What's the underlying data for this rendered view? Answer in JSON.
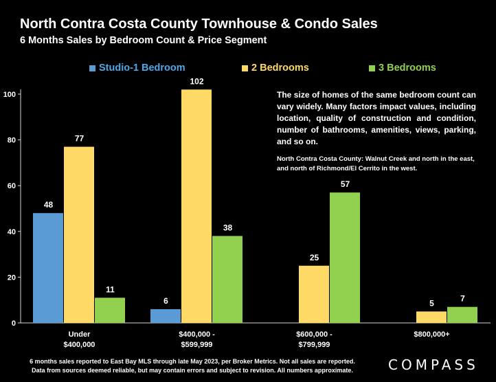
{
  "header": {
    "title": "North Contra Costa County Townhouse & Condo Sales",
    "subtitle": "6 Months Sales by Bedroom Count & Price Segment"
  },
  "note": {
    "main": "The size of homes of the same bedroom count can vary widely. Many factors impact values, including location, quality of construction and condition, number of bathrooms, amenities, views, parking, and so on.",
    "region": "North Contra Costa County: Walnut Creek and north in the east, and north of Richmond/El Cerrito in the west."
  },
  "footer": {
    "line1": "6 months sales reported to East Bay MLS through late May 2023, per Broker Metrics. Not all sales are reported.",
    "line2": "Data from sources deemed reliable, but may contain errors and subject to revision. All numbers approximate."
  },
  "logo": "COMPASS",
  "chart_data": {
    "type": "bar",
    "categories": [
      [
        "Under",
        "$400,000"
      ],
      [
        "$400,000 -",
        "$599,999"
      ],
      [
        "$600,000 -",
        "$799,999"
      ],
      [
        "$800,000+"
      ]
    ],
    "series": [
      {
        "name": "Studio-1 Bedroom",
        "color": "#5b9bd5",
        "legend_color": "#4ea8e8",
        "values": [
          48,
          6,
          null,
          null
        ]
      },
      {
        "name": "2 Bedrooms",
        "color": "#ffd966",
        "legend_color": "#ffd966",
        "values": [
          77,
          102,
          25,
          5
        ]
      },
      {
        "name": "3 Bedrooms",
        "color": "#92d050",
        "legend_color": "#92d050",
        "values": [
          11,
          38,
          57,
          7
        ]
      }
    ],
    "ylim": [
      0,
      100
    ],
    "yticks": [
      0,
      20,
      40,
      60,
      80,
      100
    ],
    "legend_position": "top",
    "grid": false
  }
}
